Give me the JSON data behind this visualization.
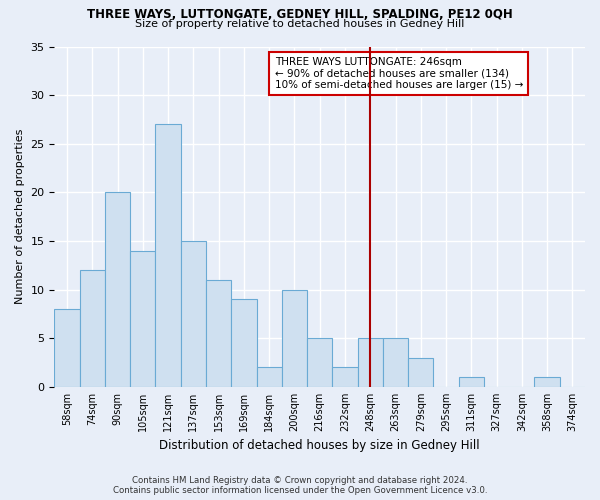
{
  "title": "THREE WAYS, LUTTONGATE, GEDNEY HILL, SPALDING, PE12 0QH",
  "subtitle": "Size of property relative to detached houses in Gedney Hill",
  "xlabel": "Distribution of detached houses by size in Gedney Hill",
  "ylabel": "Number of detached properties",
  "footer_line1": "Contains HM Land Registry data © Crown copyright and database right 2024.",
  "footer_line2": "Contains public sector information licensed under the Open Government Licence v3.0.",
  "categories": [
    "58sqm",
    "74sqm",
    "90sqm",
    "105sqm",
    "121sqm",
    "137sqm",
    "153sqm",
    "169sqm",
    "184sqm",
    "200sqm",
    "216sqm",
    "232sqm",
    "248sqm",
    "263sqm",
    "279sqm",
    "295sqm",
    "311sqm",
    "327sqm",
    "342sqm",
    "358sqm",
    "374sqm"
  ],
  "values": [
    8,
    12,
    20,
    14,
    27,
    15,
    11,
    9,
    2,
    10,
    5,
    2,
    5,
    5,
    3,
    0,
    1,
    0,
    0,
    1,
    0
  ],
  "bar_color": "#cfe0f0",
  "bar_edge_color": "#6aaad4",
  "background_color": "#e8eef8",
  "grid_color": "#ffffff",
  "vline_x_index": 12,
  "vline_color": "#aa0000",
  "annotation_text": "THREE WAYS LUTTONGATE: 246sqm\n← 90% of detached houses are smaller (134)\n10% of semi-detached houses are larger (15) →",
  "annotation_box_edge_color": "#cc0000",
  "ylim": [
    0,
    35
  ],
  "yticks": [
    0,
    5,
    10,
    15,
    20,
    25,
    30,
    35
  ]
}
